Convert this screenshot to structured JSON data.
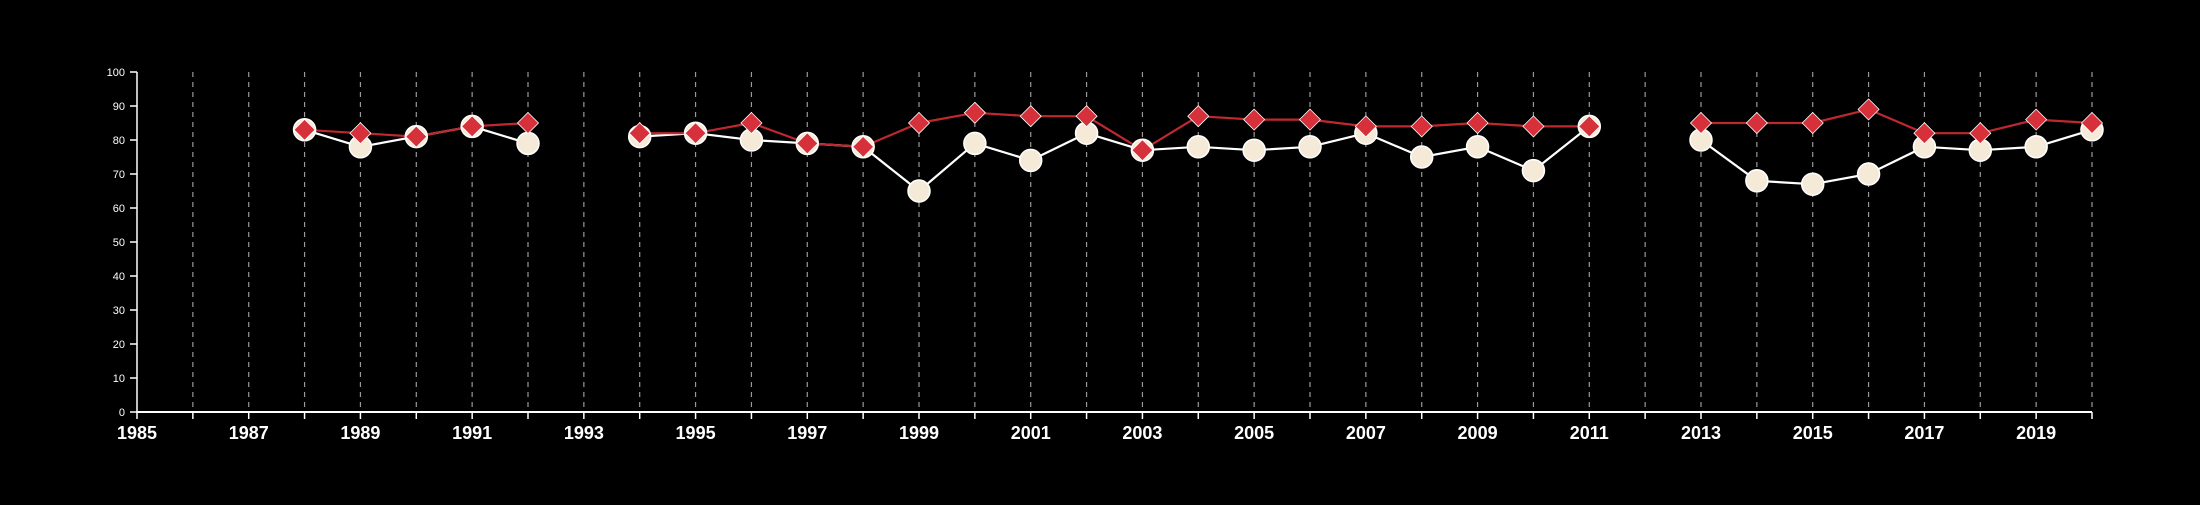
{
  "chart_data": {
    "type": "line",
    "title": "",
    "xlabel": "",
    "ylabel": "",
    "xlim": [
      1985,
      2020
    ],
    "ylim": [
      0,
      100
    ],
    "x_ticks_labeled": [
      1985,
      1987,
      1989,
      1991,
      1993,
      1995,
      1997,
      1999,
      2001,
      2003,
      2005,
      2007,
      2009,
      2011,
      2013,
      2015,
      2017,
      2019
    ],
    "y_ticks": [
      0,
      10,
      20,
      30,
      40,
      50,
      60,
      70,
      80,
      90,
      100
    ],
    "vertical_grid": "dashed, every year",
    "background_color": "#000000",
    "series": [
      {
        "marker": "circle",
        "color": "#f5ead8",
        "line_color": "#ffffff",
        "points": [
          [
            1988,
            83
          ],
          [
            1989,
            78
          ],
          [
            1990,
            81
          ],
          [
            1991,
            84
          ],
          [
            1992,
            79
          ],
          [
            1994,
            81
          ],
          [
            1995,
            82
          ],
          [
            1996,
            80
          ],
          [
            1997,
            79
          ],
          [
            1998,
            78
          ],
          [
            1999,
            65
          ],
          [
            2000,
            79
          ],
          [
            2001,
            74
          ],
          [
            2002,
            82
          ],
          [
            2003,
            77
          ],
          [
            2004,
            78
          ],
          [
            2005,
            77
          ],
          [
            2006,
            78
          ],
          [
            2007,
            82
          ],
          [
            2008,
            75
          ],
          [
            2009,
            78
          ],
          [
            2010,
            71
          ],
          [
            2011,
            84
          ],
          [
            2013,
            80
          ],
          [
            2014,
            68
          ],
          [
            2015,
            67
          ],
          [
            2016,
            70
          ],
          [
            2017,
            78
          ],
          [
            2018,
            77
          ],
          [
            2019,
            78
          ],
          [
            2020,
            83
          ]
        ]
      },
      {
        "marker": "diamond",
        "color": "#d6303a",
        "line_color": "#c0282f",
        "points": [
          [
            1988,
            83
          ],
          [
            1989,
            82
          ],
          [
            1990,
            81
          ],
          [
            1991,
            84
          ],
          [
            1992,
            85
          ],
          [
            1994,
            82
          ],
          [
            1995,
            82
          ],
          [
            1996,
            85
          ],
          [
            1997,
            79
          ],
          [
            1998,
            78
          ],
          [
            1999,
            85
          ],
          [
            2000,
            88
          ],
          [
            2001,
            87
          ],
          [
            2002,
            87
          ],
          [
            2003,
            77
          ],
          [
            2004,
            87
          ],
          [
            2005,
            86
          ],
          [
            2006,
            86
          ],
          [
            2007,
            84
          ],
          [
            2008,
            84
          ],
          [
            2009,
            85
          ],
          [
            2010,
            84
          ],
          [
            2011,
            84
          ],
          [
            2013,
            85
          ],
          [
            2014,
            85
          ],
          [
            2015,
            85
          ],
          [
            2016,
            89
          ],
          [
            2017,
            82
          ],
          [
            2018,
            82
          ],
          [
            2019,
            86
          ],
          [
            2020,
            85
          ]
        ]
      }
    ]
  }
}
